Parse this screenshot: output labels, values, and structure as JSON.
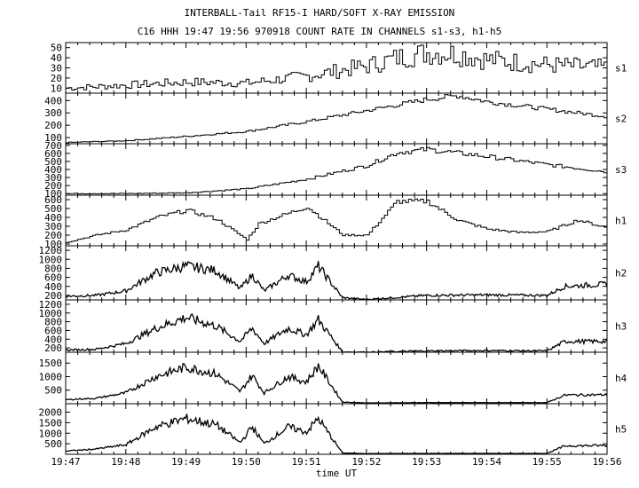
{
  "header": {
    "title": "INTERBALL-Tail RF15-I HARD/SOFT X-RAY EMISSION",
    "subtitle": "C16 HHH 19:47 19:56 970918  COUNT RATE IN CHANNELS s1-s3, h1-h5"
  },
  "chart_data": {
    "type": "line",
    "title": "INTERBALL-Tail RF15-I HARD/SOFT X-RAY EMISSION",
    "subtitle": "C16 HHH 19:47 19:56 970918  COUNT RATE IN CHANNELS s1-s3, h1-h5",
    "xlabel": "time UT",
    "x_ticks": [
      "19:47",
      "19:48",
      "19:49",
      "19:50",
      "19:51",
      "19:52",
      "19:53",
      "19:54",
      "19:55",
      "19:56"
    ],
    "xlim_minutes": [
      0,
      9
    ],
    "panels": [
      {
        "name": "s1",
        "ylim": [
          5,
          55
        ],
        "yticks": [
          10,
          20,
          30,
          40,
          50
        ],
        "x": [
          0,
          1,
          2,
          3,
          4,
          5,
          5.5,
          6,
          6.5,
          7,
          8,
          9
        ],
        "values": [
          10,
          13,
          16,
          15,
          22,
          32,
          40,
          45,
          44,
          38,
          33,
          30
        ]
      },
      {
        "name": "s2",
        "ylim": [
          50,
          460
        ],
        "yticks": [
          100,
          200,
          300,
          400
        ],
        "x": [
          0,
          1,
          2,
          3,
          4,
          5,
          6,
          6.5,
          7,
          8,
          9
        ],
        "values": [
          60,
          75,
          110,
          150,
          230,
          320,
          410,
          440,
          390,
          330,
          270
        ]
      },
      {
        "name": "s3",
        "ylim": [
          80,
          720
        ],
        "yticks": [
          100,
          200,
          300,
          400,
          500,
          600,
          700
        ],
        "x": [
          0,
          1,
          2,
          3,
          4,
          5,
          5.5,
          6,
          7,
          8,
          9
        ],
        "values": [
          100,
          100,
          110,
          160,
          280,
          450,
          610,
          650,
          560,
          460,
          370
        ]
      },
      {
        "name": "h1",
        "ylim": [
          80,
          650
        ],
        "yticks": [
          100,
          200,
          300,
          400,
          500,
          600
        ],
        "x": [
          0,
          0.5,
          1,
          1.5,
          2,
          2.5,
          3,
          3.2,
          4,
          4.3,
          4.6,
          5,
          5.5,
          6,
          6.5,
          7,
          7.5,
          8,
          8.5,
          9
        ],
        "values": [
          120,
          200,
          260,
          400,
          480,
          380,
          150,
          330,
          520,
          360,
          200,
          200,
          580,
          580,
          370,
          270,
          230,
          240,
          370,
          280
        ]
      },
      {
        "name": "h2",
        "ylim": [
          100,
          1300
        ],
        "yticks": [
          200,
          400,
          600,
          800,
          1000,
          1200
        ],
        "x": [
          0,
          0.5,
          1,
          1.5,
          2,
          2.5,
          2.9,
          3.1,
          3.3,
          3.7,
          4.0,
          4.2,
          4.6,
          5,
          6,
          7,
          8,
          8.3,
          9
        ],
        "values": [
          180,
          200,
          300,
          700,
          850,
          750,
          350,
          650,
          300,
          650,
          500,
          850,
          150,
          110,
          200,
          210,
          200,
          400,
          450
        ]
      },
      {
        "name": "h3",
        "ylim": [
          100,
          1300
        ],
        "yticks": [
          200,
          400,
          600,
          800,
          1000,
          1200
        ],
        "x": [
          0,
          0.5,
          1,
          1.5,
          2,
          2.5,
          2.9,
          3.1,
          3.3,
          3.7,
          4.0,
          4.2,
          4.6,
          5,
          6,
          7,
          8,
          8.3,
          9
        ],
        "values": [
          150,
          170,
          300,
          650,
          900,
          700,
          350,
          650,
          300,
          650,
          500,
          850,
          110,
          100,
          130,
          140,
          130,
          350,
          350
        ]
      },
      {
        "name": "h4",
        "ylim": [
          0,
          1900
        ],
        "yticks": [
          500,
          1000,
          1500
        ],
        "x": [
          0,
          0.5,
          1,
          1.5,
          2,
          2.5,
          2.9,
          3.1,
          3.3,
          3.7,
          4.0,
          4.2,
          4.6,
          5,
          6,
          7,
          8,
          8.3,
          9
        ],
        "values": [
          150,
          200,
          400,
          1000,
          1350,
          1100,
          450,
          1050,
          400,
          1000,
          800,
          1400,
          60,
          30,
          40,
          40,
          40,
          320,
          330
        ]
      },
      {
        "name": "h5",
        "ylim": [
          0,
          2400
        ],
        "yticks": [
          500,
          1000,
          1500,
          2000
        ],
        "x": [
          0,
          0.5,
          1,
          1.5,
          2,
          2.5,
          2.9,
          3.1,
          3.3,
          3.7,
          4.0,
          4.2,
          4.6,
          5,
          6,
          7,
          8,
          8.3,
          9
        ],
        "values": [
          150,
          250,
          450,
          1300,
          1700,
          1400,
          550,
          1300,
          500,
          1300,
          1050,
          1700,
          60,
          30,
          40,
          40,
          40,
          400,
          420
        ]
      }
    ]
  }
}
